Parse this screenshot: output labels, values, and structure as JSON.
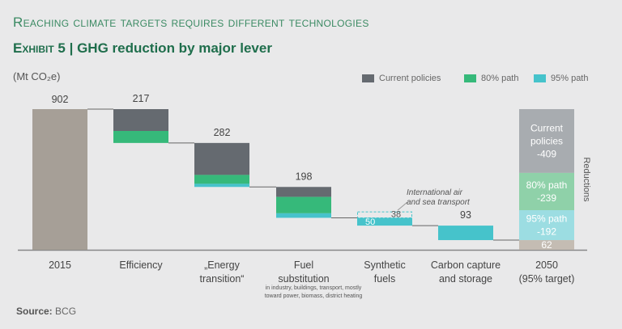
{
  "supertitle": "Reaching climate targets requires different technologies",
  "exhibit": "Exhibit 5",
  "title": "GHG reduction by major lever",
  "unit": "(Mt CO₂e)",
  "source_label": "Source:",
  "source": "BCG",
  "colors": {
    "current": "#656a70",
    "p80": "#36b97a",
    "p95": "#46c3cb",
    "base": "#a69f97",
    "current_light": "#a8acb0",
    "p80_light": "#8fd1a9",
    "p95_light": "#9cdde2",
    "base_light": "#c4bcb3"
  },
  "chart_data": {
    "type": "waterfall",
    "title": "GHG reduction by major lever",
    "ylabel": "Mt CO₂e",
    "ylim": [
      0,
      902
    ],
    "legend": [
      "Current policies",
      "80% path",
      "95% path"
    ],
    "legend_position": "top-right",
    "categories": [
      {
        "label": [
          "2015"
        ],
        "total": 902,
        "type": "start"
      },
      {
        "label": [
          "Efficiency"
        ],
        "total": 217,
        "segments": {
          "current": 140,
          "p80": 77,
          "p95": 0
        }
      },
      {
        "label": [
          "„Energy",
          "transition“"
        ],
        "total": 282,
        "segments": {
          "current": 205,
          "p80": 57,
          "p95": 20
        }
      },
      {
        "label": [
          "Fuel",
          "substitution"
        ],
        "total": 198,
        "segments": {
          "current": 64,
          "p80": 105,
          "p95": 29
        },
        "note": [
          "in industry, buildings, transport, mostly",
          "toward power, biomass, district heating"
        ]
      },
      {
        "label": [
          "Synthetic",
          "fuels"
        ],
        "total": 50,
        "segments": {
          "current": 0,
          "p80": 0,
          "p95": 50
        },
        "extra": 38,
        "extra_note": [
          "International air",
          "and sea transport"
        ]
      },
      {
        "label": [
          "Carbon capture",
          "and storage"
        ],
        "total": 93,
        "segments": {
          "current": 0,
          "p80": 0,
          "p95": 93
        }
      },
      {
        "label": [
          "2050",
          "(95% target)"
        ],
        "total": 62,
        "type": "end",
        "stack": [
          {
            "name": [
              "Current",
              "policies"
            ],
            "value": -409
          },
          {
            "name": [
              "80% path"
            ],
            "value": -239
          },
          {
            "name": [
              "95% path"
            ],
            "value": -192
          },
          {
            "name": [],
            "value": 62
          }
        ]
      }
    ],
    "side_label": "Reductions"
  }
}
